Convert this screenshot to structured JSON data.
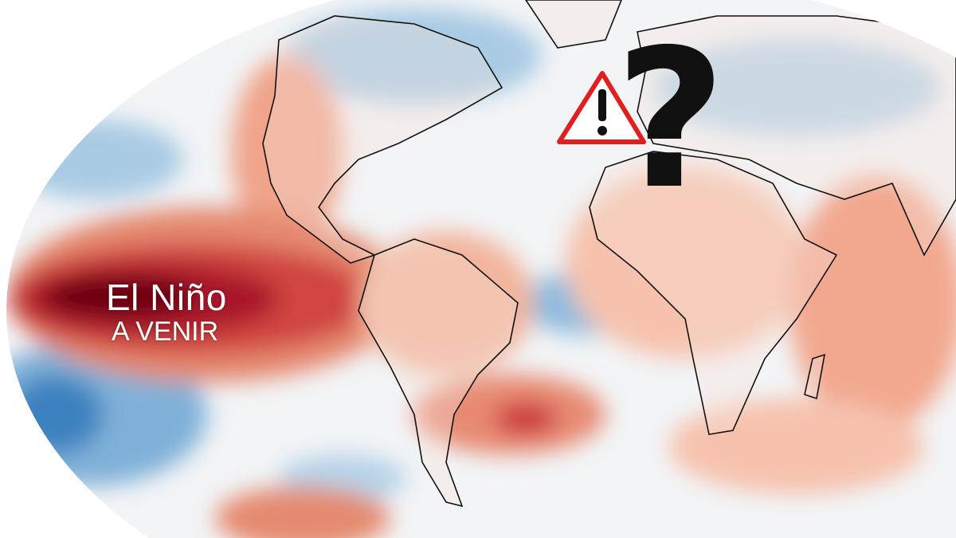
{
  "overlay": {
    "title": "El Niño",
    "subtitle": "A VENIR"
  },
  "icons": {
    "warning": "warning-triangle-icon",
    "question": "question-mark-icon"
  },
  "map": {
    "projection": "mollweide",
    "variable": "sea surface temperature anomaly",
    "colors": {
      "strong_warm": "#67000d",
      "warm": "#c8333a",
      "mild_warm": "#f4a582",
      "neutral": "#f0f3f6",
      "mild_cool": "#bcd7ea",
      "cool": "#4a90c6",
      "strong_cool": "#2b72b4",
      "land_outline": "#111111"
    }
  }
}
